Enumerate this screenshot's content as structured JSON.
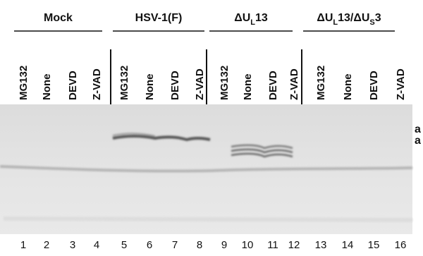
{
  "groups": [
    {
      "label": [
        "Mock"
      ]
    },
    {
      "label": [
        "HSV-1(F)"
      ]
    },
    {
      "label": [
        "ΔU",
        "L",
        "13"
      ]
    },
    {
      "label": [
        "ΔU",
        "L",
        "13/ΔU",
        "S",
        "3"
      ]
    }
  ],
  "lanes": {
    "treatments": [
      "MG132",
      "None",
      "DEVD",
      "Z-VAD",
      "MG132",
      "None",
      "DEVD",
      "Z-VAD",
      "MG132",
      "None",
      "DEVD",
      "Z-VAD",
      "MG132",
      "None",
      "DEVD",
      "Z-VAD"
    ],
    "numbers": [
      "1",
      "2",
      "3",
      "4",
      "5",
      "6",
      "7",
      "8",
      "9",
      "10",
      "11",
      "12",
      "13",
      "14",
      "15",
      "16"
    ]
  },
  "side_labels": [
    "a",
    "a"
  ]
}
